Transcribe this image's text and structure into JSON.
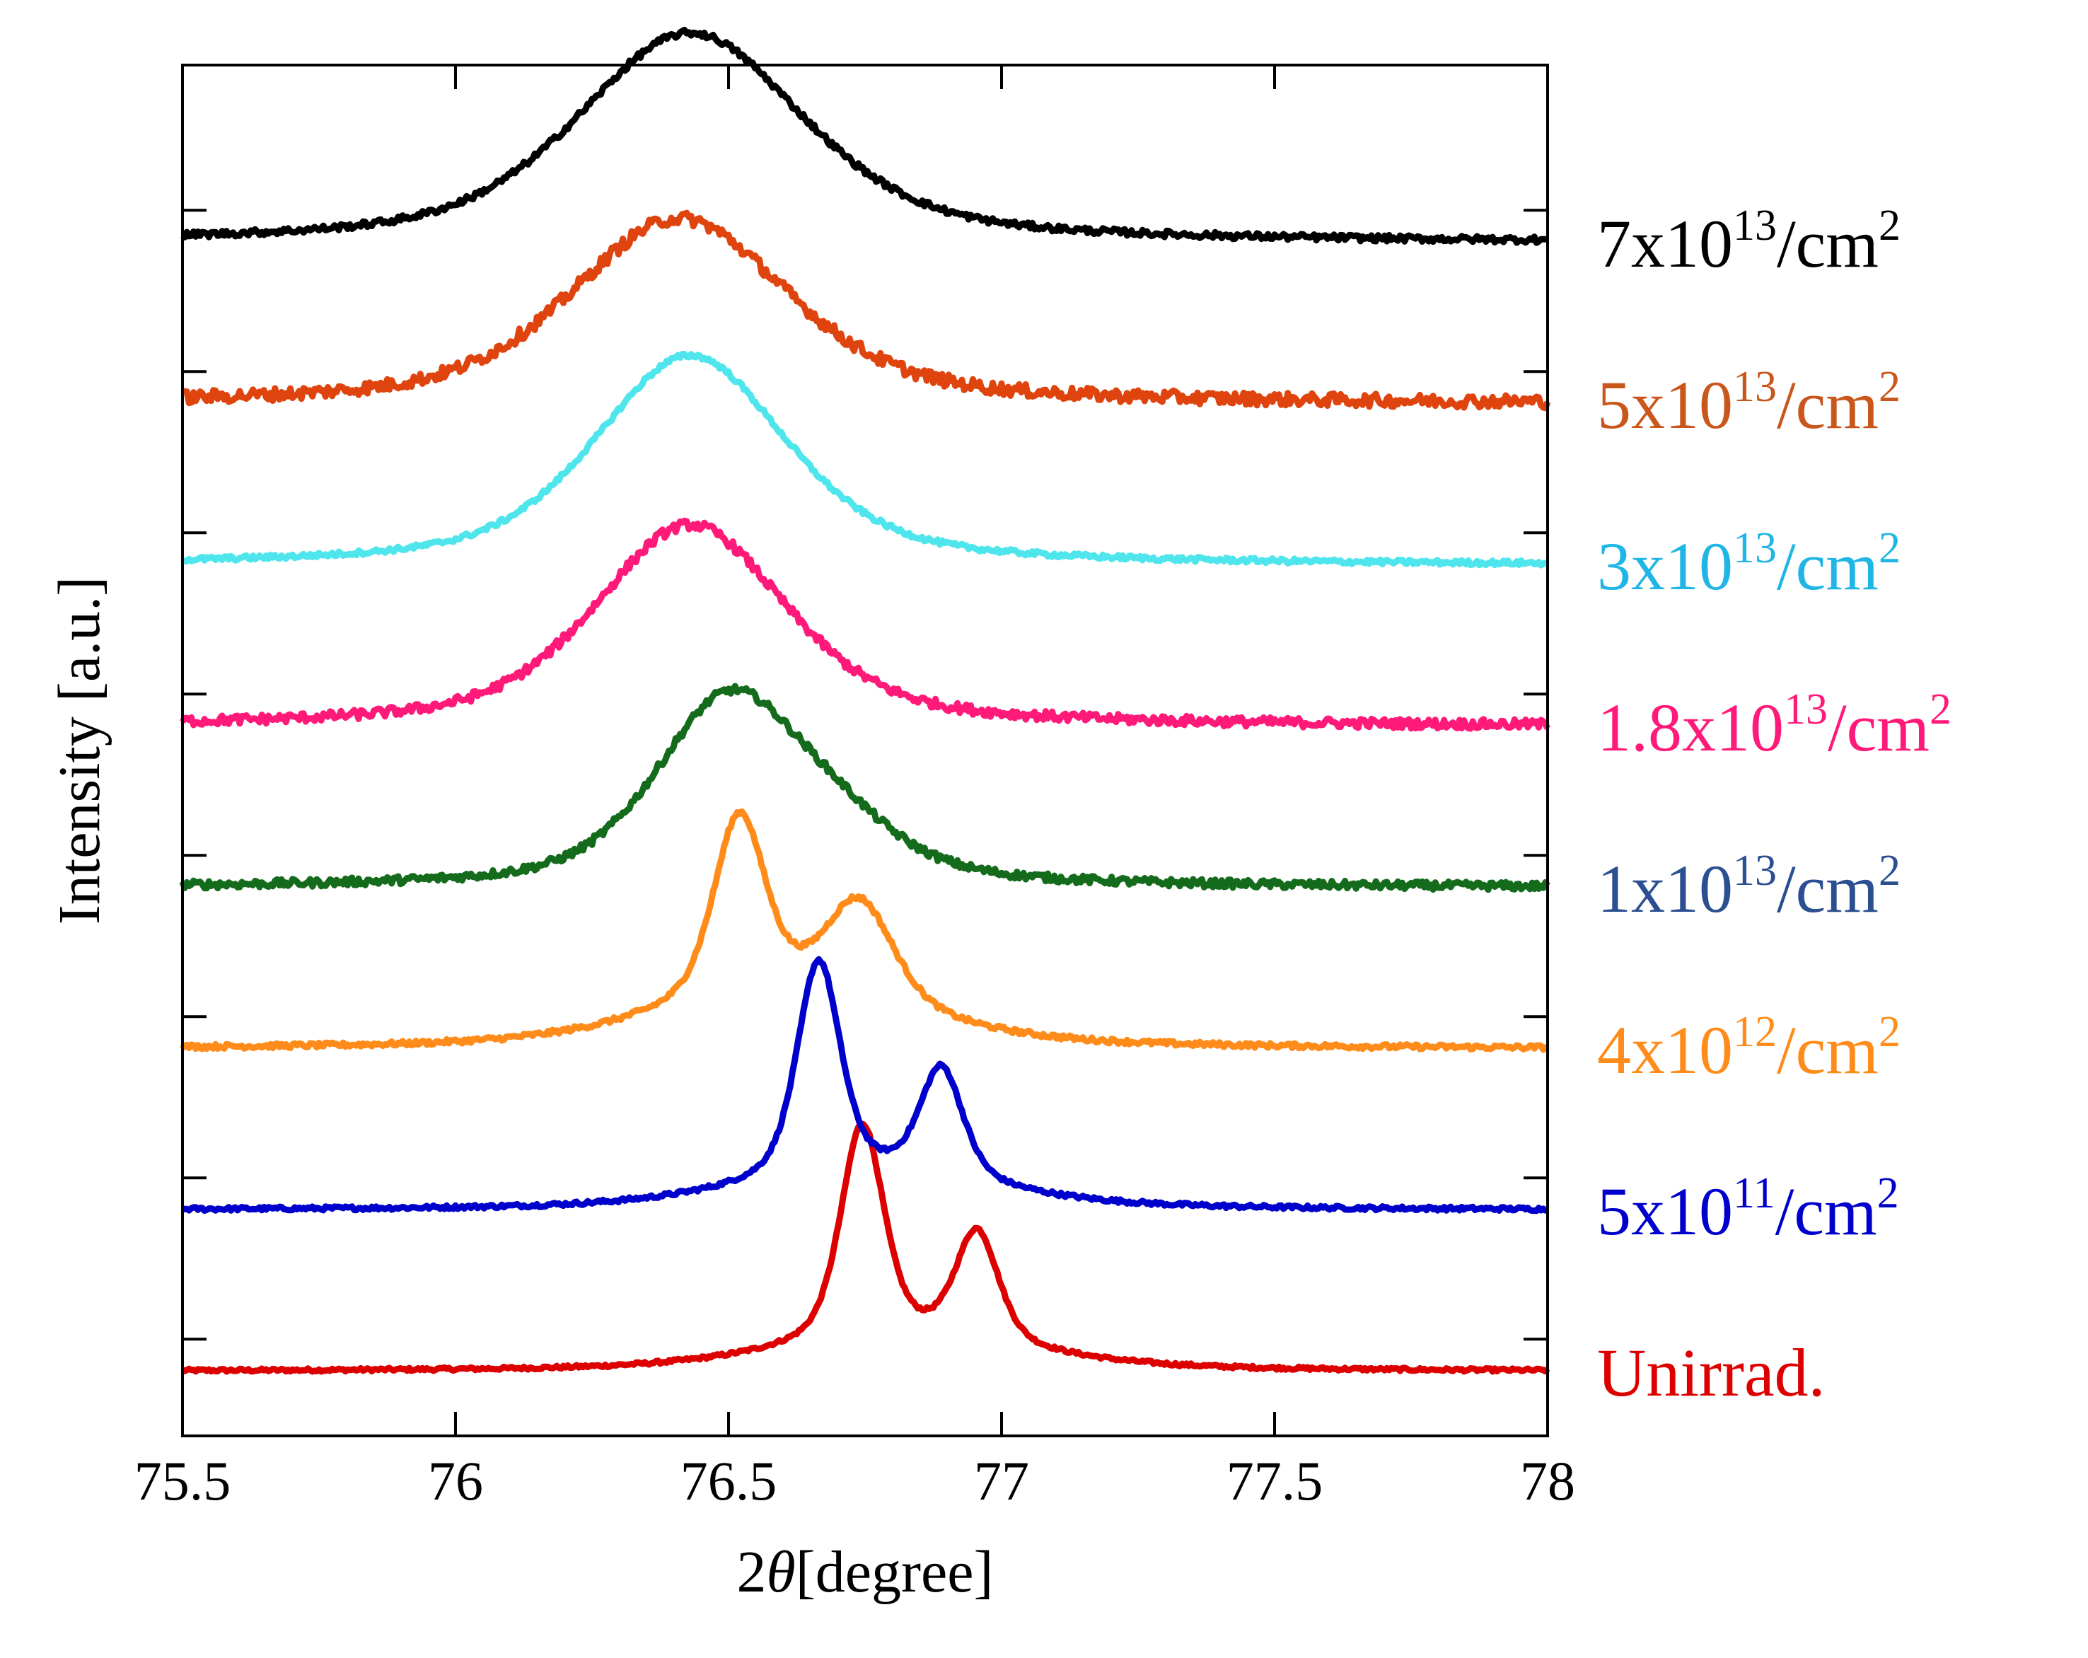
{
  "chart_data": {
    "type": "line",
    "title": "",
    "xlabel": "2θ[degree]",
    "xlabel_prefix": "2",
    "xlabel_symbol": "θ",
    "xlabel_suffix": "[degree]",
    "ylabel": "Intensity [a.u.]",
    "xlim": [
      75.5,
      78
    ],
    "ylim": [
      0,
      8.5
    ],
    "x_ticks": [
      75.5,
      76,
      76.5,
      77,
      77.5,
      78
    ],
    "x_tick_labels": [
      "75.5",
      "76",
      "76.5",
      "77",
      "77.5",
      "78"
    ],
    "y_tick_labels": "none",
    "grid": false,
    "legend": "right-side labels aligned to each curve",
    "offset_between_traces": 1,
    "series": [
      {
        "name": "Unirrad.",
        "label_main": "Unirrad.",
        "color": "#dd0000",
        "baseline": 0.4,
        "peaks": [
          {
            "center": 76.745,
            "amplitude": 1.35,
            "width": 0.05
          },
          {
            "center": 76.955,
            "amplitude": 0.7,
            "width": 0.05
          },
          {
            "center": 76.82,
            "amplitude": 0.18,
            "width": 0.3
          }
        ],
        "noise": 0.01
      },
      {
        "name": "5x10^11/cm^2",
        "label_main": "5x10",
        "label_exp": "11",
        "label_unit": "/cm",
        "label_unit_exp": "2",
        "color": "#0000cc",
        "baseline": 1.4,
        "peaks": [
          {
            "center": 76.665,
            "amplitude": 1.35,
            "width": 0.05
          },
          {
            "center": 76.89,
            "amplitude": 0.7,
            "width": 0.05
          },
          {
            "center": 76.75,
            "amplitude": 0.2,
            "width": 0.3
          }
        ],
        "noise": 0.012
      },
      {
        "name": "4x10^12/cm^2",
        "label_main": "4x10",
        "label_exp": "12",
        "label_unit": "/cm",
        "label_unit_exp": "2",
        "color": "#ff8c1a",
        "baseline": 2.4,
        "peaks": [
          {
            "center": 76.52,
            "amplitude": 1.15,
            "width": 0.06
          },
          {
            "center": 76.74,
            "amplitude": 0.65,
            "width": 0.08
          },
          {
            "center": 76.6,
            "amplitude": 0.3,
            "width": 0.3
          }
        ],
        "noise": 0.015
      },
      {
        "name": "1x10^13/cm^2",
        "label_main": "1x10",
        "label_exp": "13",
        "label_unit": "/cm",
        "label_unit_exp": "2",
        "color": "#156b1c",
        "label_color": "#2b4f91",
        "baseline": 3.4,
        "peaks": [
          {
            "center": 76.5,
            "amplitude": 1.15,
            "width": 0.17
          },
          {
            "center": 76.7,
            "amplitude": 0.25,
            "width": 0.15
          }
        ],
        "noise": 0.025
      },
      {
        "name": "1.8x10^13/cm^2",
        "label_main": "1.8x10",
        "label_exp": "13",
        "label_unit": "/cm",
        "label_unit_exp": "2",
        "color": "#ff1a7a",
        "baseline": 4.4,
        "peaks": [
          {
            "center": 76.43,
            "amplitude": 1.25,
            "width": 0.22
          }
        ],
        "noise": 0.03
      },
      {
        "name": "3x10^13/cm^2",
        "label_main": "3x10",
        "label_exp": "13",
        "label_unit": "/cm",
        "label_unit_exp": "2",
        "color": "#4ee6ec",
        "label_color": "#1fb6e6",
        "baseline": 5.4,
        "peaks": [
          {
            "center": 76.43,
            "amplitude": 1.3,
            "width": 0.22
          }
        ],
        "noise": 0.015
      },
      {
        "name": "5x10^13/cm^2",
        "label_main": "5x10",
        "label_exp": "13",
        "label_unit": "/cm",
        "label_unit_exp": "2",
        "color": "#e0440e",
        "label_color": "#c9571b",
        "baseline": 6.4,
        "peaks": [
          {
            "center": 76.41,
            "amplitude": 1.15,
            "width": 0.25
          }
        ],
        "noise": 0.04
      },
      {
        "name": "7x10^13/cm^2",
        "label_main": "7x10",
        "label_exp": "13",
        "label_unit": "/cm",
        "label_unit_exp": "2",
        "color": "#000000",
        "baseline": 7.4,
        "peaks": [
          {
            "center": 76.43,
            "amplitude": 1.3,
            "width": 0.26
          }
        ],
        "noise": 0.02
      }
    ]
  }
}
